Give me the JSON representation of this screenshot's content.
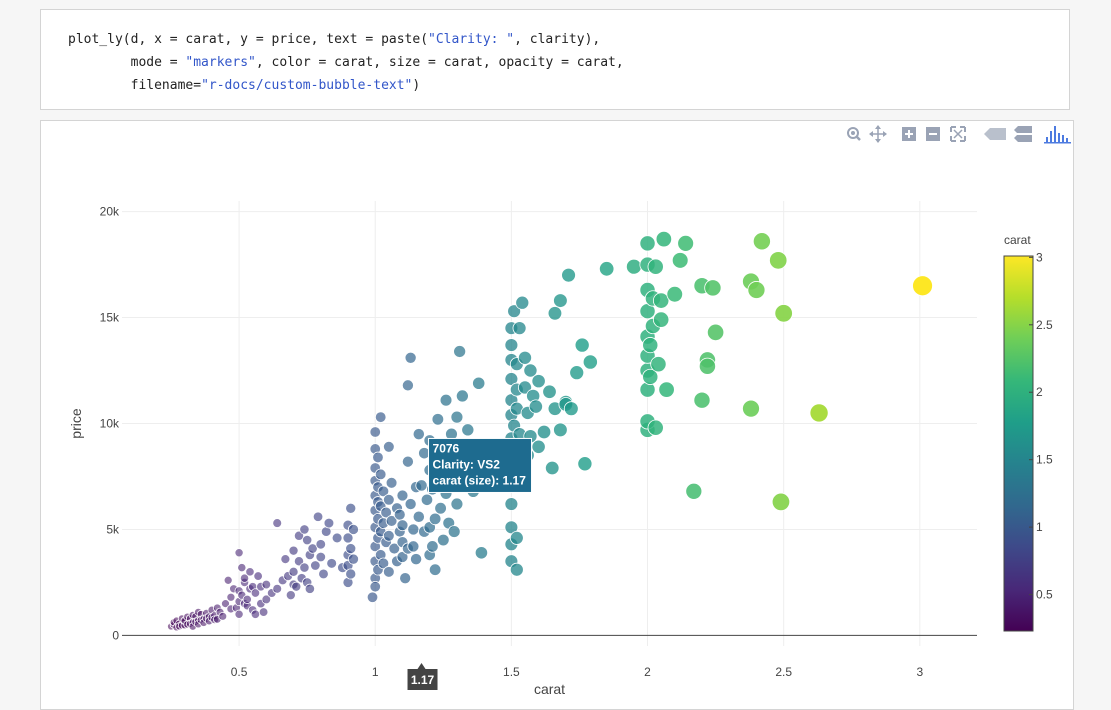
{
  "code": {
    "lines": [
      [
        {
          "t": "plot_ly(d, x = carat, y = price, text = paste(",
          "s": false
        },
        {
          "t": "\"Clarity: \"",
          "s": true
        },
        {
          "t": ", clarity),",
          "s": false
        }
      ],
      [
        {
          "t": "        mode = ",
          "s": false
        },
        {
          "t": "\"markers\"",
          "s": true
        },
        {
          "t": ", color = carat, size = carat, opacity = carat,",
          "s": false
        }
      ],
      [
        {
          "t": "        filename=",
          "s": false
        },
        {
          "t": "\"r-docs/custom-bubble-text\"",
          "s": true
        },
        {
          "t": ")",
          "s": false
        }
      ]
    ]
  },
  "modebar": {
    "icons": [
      "zoom-icon",
      "pan-icon",
      "zoom-in-icon",
      "zoom-out-icon",
      "autoscale-icon",
      "hover-closest-icon",
      "hover-compare-icon",
      "plotly-logo-icon"
    ]
  },
  "chart_data": {
    "type": "scatter",
    "xlabel": "carat",
    "ylabel": "price",
    "xlim": [
      0.07,
      3.21
    ],
    "ylim": [
      -500,
      20500
    ],
    "x_ticks": [
      0.5,
      1,
      1.5,
      2,
      2.5,
      3
    ],
    "x_tick_labels": [
      "0.5",
      "1",
      "1.5",
      "2",
      "2.5",
      "3"
    ],
    "y_ticks": [
      0,
      5000,
      10000,
      15000,
      20000
    ],
    "y_tick_labels": [
      "0",
      "5k",
      "10k",
      "15k",
      "20k"
    ],
    "grid": true,
    "colorbar": {
      "title": "carat",
      "range": [
        0.23,
        3.01
      ],
      "ticks": [
        0.5,
        1,
        1.5,
        2,
        2.5,
        3
      ],
      "tick_labels": [
        "0.5",
        "1",
        "1.5",
        "2",
        "2.5",
        "3"
      ],
      "colorscale": [
        "#440154",
        "#482878",
        "#3e4989",
        "#31688e",
        "#26828e",
        "#1f9e89",
        "#35b779",
        "#6ece58",
        "#b5de2b",
        "#fde725"
      ]
    },
    "hover": {
      "x": 1.17,
      "y": 7076,
      "lines": [
        "7076",
        "Clarity:  VS2",
        "carat (size): 1.17"
      ],
      "x_label": "1.17"
    },
    "points": [
      [
        0.25,
        420
      ],
      [
        0.26,
        500
      ],
      [
        0.27,
        380
      ],
      [
        0.28,
        560
      ],
      [
        0.29,
        470
      ],
      [
        0.3,
        650
      ],
      [
        0.31,
        520
      ],
      [
        0.32,
        800
      ],
      [
        0.33,
        610
      ],
      [
        0.34,
        900
      ],
      [
        0.35,
        700
      ],
      [
        0.36,
        1000
      ],
      [
        0.37,
        780
      ],
      [
        0.38,
        1050
      ],
      [
        0.39,
        880
      ],
      [
        0.4,
        1200
      ],
      [
        0.41,
        930
      ],
      [
        0.42,
        1300
      ],
      [
        0.43,
        1100
      ],
      [
        0.44,
        900
      ],
      [
        0.28,
        430
      ],
      [
        0.3,
        480
      ],
      [
        0.32,
        550
      ],
      [
        0.34,
        640
      ],
      [
        0.36,
        720
      ],
      [
        0.38,
        800
      ],
      [
        0.4,
        850
      ],
      [
        0.42,
        760
      ],
      [
        0.3,
        700
      ],
      [
        0.33,
        420
      ],
      [
        0.35,
        530
      ],
      [
        0.37,
        600
      ],
      [
        0.39,
        680
      ],
      [
        0.41,
        740
      ],
      [
        0.26,
        620
      ],
      [
        0.27,
        700
      ],
      [
        0.29,
        800
      ],
      [
        0.31,
        880
      ],
      [
        0.33,
        960
      ],
      [
        0.35,
        1100
      ],
      [
        0.45,
        1500
      ],
      [
        0.47,
        1800
      ],
      [
        0.48,
        2200
      ],
      [
        0.5,
        2100
      ],
      [
        0.5,
        1600
      ],
      [
        0.51,
        1900
      ],
      [
        0.52,
        2500
      ],
      [
        0.53,
        1400
      ],
      [
        0.54,
        3000
      ],
      [
        0.55,
        2300
      ],
      [
        0.5,
        3900
      ],
      [
        0.51,
        3200
      ],
      [
        0.52,
        2700
      ],
      [
        0.53,
        1700
      ],
      [
        0.55,
        1200
      ],
      [
        0.56,
        2000
      ],
      [
        0.57,
        2800
      ],
      [
        0.58,
        1500
      ],
      [
        0.59,
        1100
      ],
      [
        0.6,
        2400
      ],
      [
        0.46,
        2600
      ],
      [
        0.49,
        1300
      ],
      [
        0.5,
        1000
      ],
      [
        0.52,
        1500
      ],
      [
        0.54,
        2200
      ],
      [
        0.56,
        1000
      ],
      [
        0.58,
        2300
      ],
      [
        0.6,
        1700
      ],
      [
        0.62,
        2000
      ],
      [
        0.47,
        1250
      ],
      [
        0.64,
        2200
      ],
      [
        0.66,
        2600
      ],
      [
        0.68,
        2800
      ],
      [
        0.7,
        3000
      ],
      [
        0.7,
        2400
      ],
      [
        0.72,
        3500
      ],
      [
        0.74,
        3200
      ],
      [
        0.75,
        4500
      ],
      [
        0.76,
        3800
      ],
      [
        0.78,
        3300
      ],
      [
        0.7,
        4000
      ],
      [
        0.72,
        4700
      ],
      [
        0.73,
        2700
      ],
      [
        0.75,
        2500
      ],
      [
        0.77,
        4100
      ],
      [
        0.8,
        3700
      ],
      [
        0.8,
        4300
      ],
      [
        0.81,
        2900
      ],
      [
        0.82,
        4900
      ],
      [
        0.84,
        3400
      ],
      [
        0.67,
        3600
      ],
      [
        0.69,
        1900
      ],
      [
        0.71,
        2300
      ],
      [
        0.74,
        5000
      ],
      [
        0.76,
        2200
      ],
      [
        0.79,
        5600
      ],
      [
        0.83,
        5300
      ],
      [
        0.86,
        4600
      ],
      [
        0.88,
        3200
      ],
      [
        0.64,
        5300
      ],
      [
        0.9,
        3300
      ],
      [
        0.9,
        3800
      ],
      [
        0.9,
        4600
      ],
      [
        0.9,
        5200
      ],
      [
        0.91,
        4100
      ],
      [
        0.91,
        2900
      ],
      [
        0.92,
        3600
      ],
      [
        0.92,
        5000
      ],
      [
        0.9,
        2500
      ],
      [
        0.91,
        6000
      ],
      [
        1.0,
        2700
      ],
      [
        1.0,
        3500
      ],
      [
        1.0,
        4200
      ],
      [
        1.0,
        5100
      ],
      [
        1.0,
        5900
      ],
      [
        1.0,
        6600
      ],
      [
        1.0,
        7300
      ],
      [
        1.0,
        7900
      ],
      [
        1.0,
        8800
      ],
      [
        1.01,
        3100
      ],
      [
        1.01,
        4600
      ],
      [
        1.01,
        5500
      ],
      [
        1.01,
        6300
      ],
      [
        1.01,
        7000
      ],
      [
        1.01,
        8400
      ],
      [
        1.02,
        3800
      ],
      [
        1.02,
        4900
      ],
      [
        1.02,
        6100
      ],
      [
        1.02,
        7600
      ],
      [
        1.02,
        10300
      ],
      [
        1.03,
        3400
      ],
      [
        1.03,
        5300
      ],
      [
        1.03,
        6800
      ],
      [
        1.04,
        4400
      ],
      [
        1.04,
        5800
      ],
      [
        1.05,
        3000
      ],
      [
        1.05,
        4700
      ],
      [
        1.05,
        6400
      ],
      [
        1.05,
        8900
      ],
      [
        1.06,
        5400
      ],
      [
        0.99,
        1800
      ],
      [
        1.0,
        2300
      ],
      [
        1.0,
        9600
      ],
      [
        1.06,
        7200
      ],
      [
        1.07,
        4100
      ],
      [
        1.08,
        6000
      ],
      [
        1.08,
        3500
      ],
      [
        1.09,
        4900
      ],
      [
        1.09,
        5700
      ],
      [
        1.1,
        3700
      ],
      [
        1.1,
        4400
      ],
      [
        1.1,
        5200
      ],
      [
        1.1,
        6600
      ],
      [
        1.11,
        2700
      ],
      [
        1.12,
        4100
      ],
      [
        1.12,
        8200
      ],
      [
        1.12,
        11800
      ],
      [
        1.13,
        6200
      ],
      [
        1.13,
        13100
      ],
      [
        1.14,
        5000
      ],
      [
        1.14,
        4200
      ],
      [
        1.15,
        3600
      ],
      [
        1.15,
        7000
      ],
      [
        1.16,
        9500
      ],
      [
        1.16,
        5600
      ],
      [
        1.17,
        7076
      ],
      [
        1.18,
        4900
      ],
      [
        1.18,
        8600
      ],
      [
        1.19,
        6400
      ],
      [
        1.2,
        3800
      ],
      [
        1.2,
        5100
      ],
      [
        1.2,
        7800
      ],
      [
        1.2,
        9200
      ],
      [
        1.21,
        4200
      ],
      [
        1.21,
        6900
      ],
      [
        1.22,
        3100
      ],
      [
        1.22,
        5500
      ],
      [
        1.23,
        8700
      ],
      [
        1.23,
        10200
      ],
      [
        1.24,
        6000
      ],
      [
        1.25,
        4500
      ],
      [
        1.25,
        7500
      ],
      [
        1.26,
        11100
      ],
      [
        1.26,
        6700
      ],
      [
        1.27,
        5300
      ],
      [
        1.27,
        8300
      ],
      [
        1.28,
        9500
      ],
      [
        1.29,
        4900
      ],
      [
        1.3,
        6200
      ],
      [
        1.3,
        10300
      ],
      [
        1.31,
        7800
      ],
      [
        1.31,
        13400
      ],
      [
        1.32,
        11300
      ],
      [
        1.33,
        8700
      ],
      [
        1.34,
        9700
      ],
      [
        1.36,
        6800
      ],
      [
        1.38,
        11900
      ],
      [
        1.39,
        3900
      ],
      [
        1.4,
        7400
      ],
      [
        1.4,
        8900
      ],
      [
        1.5,
        3500
      ],
      [
        1.5,
        4300
      ],
      [
        1.5,
        5100
      ],
      [
        1.5,
        6200
      ],
      [
        1.5,
        7100
      ],
      [
        1.5,
        8200
      ],
      [
        1.5,
        9300
      ],
      [
        1.5,
        10400
      ],
      [
        1.5,
        11100
      ],
      [
        1.5,
        12100
      ],
      [
        1.5,
        13000
      ],
      [
        1.5,
        13700
      ],
      [
        1.5,
        14500
      ],
      [
        1.51,
        15300
      ],
      [
        1.51,
        9900
      ],
      [
        1.51,
        8700
      ],
      [
        1.52,
        11600
      ],
      [
        1.52,
        10700
      ],
      [
        1.52,
        3100
      ],
      [
        1.52,
        4600
      ],
      [
        1.52,
        12800
      ],
      [
        1.53,
        9500
      ],
      [
        1.53,
        8800
      ],
      [
        1.53,
        14500
      ],
      [
        1.54,
        15700
      ],
      [
        1.55,
        11700
      ],
      [
        1.55,
        13100
      ],
      [
        1.56,
        10500
      ],
      [
        1.56,
        8500
      ],
      [
        1.57,
        12500
      ],
      [
        1.57,
        9400
      ],
      [
        1.58,
        11300
      ],
      [
        1.59,
        10800
      ],
      [
        1.6,
        8900
      ],
      [
        1.6,
        12000
      ],
      [
        1.62,
        9600
      ],
      [
        1.64,
        11500
      ],
      [
        1.65,
        7900
      ],
      [
        1.66,
        10700
      ],
      [
        1.68,
        9700
      ],
      [
        1.66,
        15200
      ],
      [
        1.68,
        15800
      ],
      [
        1.7,
        11000
      ],
      [
        1.71,
        17000
      ],
      [
        1.72,
        10700
      ],
      [
        1.74,
        12400
      ],
      [
        1.76,
        13700
      ],
      [
        1.77,
        8100
      ],
      [
        1.79,
        12900
      ],
      [
        1.7,
        10900
      ],
      [
        1.85,
        17300
      ],
      [
        1.95,
        17400
      ],
      [
        2.0,
        9700
      ],
      [
        2.0,
        10100
      ],
      [
        2.0,
        11600
      ],
      [
        2.0,
        12500
      ],
      [
        2.0,
        13200
      ],
      [
        2.0,
        14100
      ],
      [
        2.0,
        15300
      ],
      [
        2.0,
        16300
      ],
      [
        2.0,
        17500
      ],
      [
        2.0,
        18500
      ],
      [
        2.01,
        13700
      ],
      [
        2.01,
        12200
      ],
      [
        2.02,
        15900
      ],
      [
        2.02,
        14600
      ],
      [
        2.03,
        17400
      ],
      [
        2.03,
        9800
      ],
      [
        2.04,
        12800
      ],
      [
        2.05,
        14900
      ],
      [
        2.05,
        15800
      ],
      [
        2.06,
        18700
      ],
      [
        2.07,
        11600
      ],
      [
        2.1,
        16100
      ],
      [
        2.12,
        17700
      ],
      [
        2.14,
        18500
      ],
      [
        2.17,
        6800
      ],
      [
        2.2,
        11100
      ],
      [
        2.2,
        16500
      ],
      [
        2.22,
        13000
      ],
      [
        2.22,
        12700
      ],
      [
        2.24,
        16400
      ],
      [
        2.25,
        14300
      ],
      [
        2.38,
        16700
      ],
      [
        2.38,
        10700
      ],
      [
        2.4,
        16300
      ],
      [
        2.42,
        18600
      ],
      [
        2.48,
        17700
      ],
      [
        2.49,
        6300
      ],
      [
        2.5,
        15200
      ],
      [
        2.63,
        10500
      ],
      [
        3.01,
        16500
      ]
    ]
  }
}
